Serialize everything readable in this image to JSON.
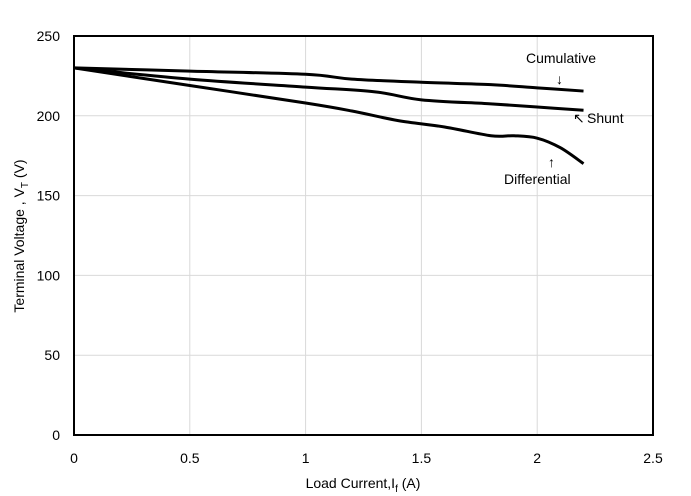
{
  "chart_data": {
    "type": "line",
    "xlabel": "Load Current,I",
    "xlabel_sub": "f",
    "xlabel_unit": " (A)",
    "ylabel": "Terminal Voltage , V",
    "ylabel_sub": "T",
    "ylabel_unit": " (V)",
    "xlim": [
      0,
      2.5
    ],
    "ylim": [
      0,
      250
    ],
    "xticks": [
      0,
      0.5,
      1,
      1.5,
      2,
      2.5
    ],
    "xtick_labels": [
      "0",
      "0.5",
      "1",
      "1.5",
      "2",
      "2.5"
    ],
    "yticks": [
      0,
      50,
      100,
      150,
      200,
      250
    ],
    "ytick_labels": [
      "0",
      "50",
      "100",
      "150",
      "200",
      "250"
    ],
    "grid": true,
    "series": [
      {
        "name": "Cumulative",
        "x": [
          0,
          0.5,
          1.0,
          1.2,
          1.5,
          1.8,
          2.0,
          2.2
        ],
        "y": [
          230,
          228,
          226,
          223,
          221,
          219.5,
          217.5,
          215.5
        ]
      },
      {
        "name": "Shunt",
        "x": [
          0,
          0.5,
          1.0,
          1.3,
          1.5,
          1.8,
          2.0,
          2.2
        ],
        "y": [
          230,
          223,
          218,
          215,
          210,
          207.5,
          205.5,
          203.5
        ]
      },
      {
        "name": "Differential",
        "x": [
          0,
          0.5,
          1.0,
          1.2,
          1.4,
          1.6,
          1.8,
          1.9,
          2.0,
          2.1,
          2.2
        ],
        "y": [
          230,
          219,
          208,
          203,
          197,
          193,
          187.5,
          187.5,
          186,
          180,
          170
        ]
      }
    ],
    "annotations": [
      {
        "text": "Cumulative",
        "arrow": "↓"
      },
      {
        "text": "Shunt",
        "arrow": "↖"
      },
      {
        "text": "Differential",
        "arrow": "↑"
      }
    ]
  }
}
